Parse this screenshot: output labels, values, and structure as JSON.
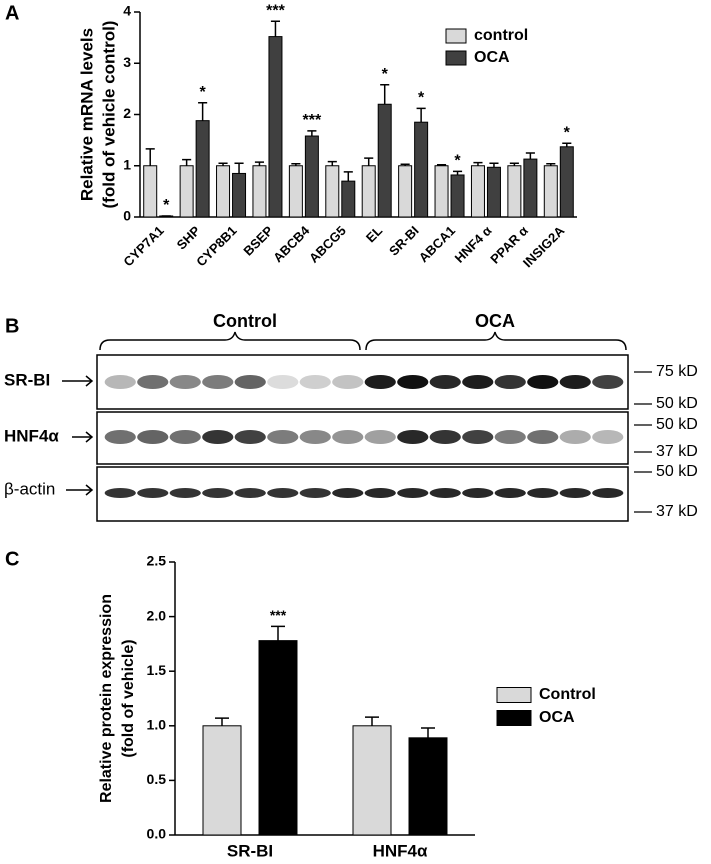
{
  "chart_data": [
    {
      "type": "bar",
      "panel": "A",
      "ylabel": [
        "Relative mRNA levels",
        "(fold of vehicle control)"
      ],
      "categories": [
        "CYP7A1",
        "SHP",
        "CYP8B1",
        "BSEP",
        "ABCB4",
        "ABCG5",
        "EL",
        "SR-BI",
        "ABCA1",
        "HNF4 α",
        "PPAR α",
        "INSIG2A"
      ],
      "series": [
        {
          "name": "control",
          "color": "#d9d9d9",
          "values": [
            1.0,
            1.0,
            1.0,
            1.0,
            1.0,
            1.0,
            1.0,
            1.0,
            1.0,
            1.0,
            1.0,
            1.0
          ],
          "errors": [
            0.33,
            0.12,
            0.05,
            0.07,
            0.04,
            0.08,
            0.15,
            0.03,
            0.02,
            0.06,
            0.05,
            0.04
          ]
        },
        {
          "name": "OCA",
          "color": "#404040",
          "values": [
            0.02,
            1.88,
            0.85,
            3.52,
            1.58,
            0.7,
            2.2,
            1.85,
            0.82,
            0.97,
            1.13,
            1.37
          ],
          "errors": [
            0.0,
            0.35,
            0.2,
            0.3,
            0.1,
            0.18,
            0.38,
            0.27,
            0.07,
            0.08,
            0.12,
            0.07
          ],
          "significance": [
            "*",
            "*",
            null,
            "***",
            "***",
            null,
            "*",
            "*",
            "*",
            null,
            null,
            "*"
          ]
        }
      ],
      "ylim": [
        0,
        4
      ],
      "yticks": [
        0,
        1,
        2,
        3,
        4
      ],
      "legend": "upper right",
      "grid": false
    },
    {
      "type": "bar",
      "panel": "C",
      "ylabel": [
        "Relative protein expression",
        "(fold of vehicle)"
      ],
      "categories": [
        "SR-BI",
        "HNF4α"
      ],
      "series": [
        {
          "name": "Control",
          "color": "#d9d9d9",
          "values": [
            1.0,
            1.0
          ],
          "errors": [
            0.07,
            0.08
          ]
        },
        {
          "name": "OCA",
          "color": "#000000",
          "values": [
            1.78,
            0.89
          ],
          "errors": [
            0.13,
            0.09
          ],
          "significance": [
            "***",
            null
          ]
        }
      ],
      "ylim": [
        0,
        2.5
      ],
      "yticks": [
        {
          "value": 0,
          "label": "0.0"
        },
        0.5,
        {
          "value": 1,
          "label": "1.0"
        },
        1.5,
        {
          "value": 2,
          "label": "2.0"
        },
        2.5
      ],
      "legend": "right",
      "grid": false
    }
  ],
  "blot": {
    "panel": "B",
    "groups": [
      "Control",
      "OCA"
    ],
    "rows": [
      {
        "label": "SR-BI",
        "markers": [
          "75 kD",
          "50 kD"
        ]
      },
      {
        "label": "HNF4α",
        "markers": [
          "50 kD",
          "37 kD"
        ]
      },
      {
        "label": "β-actin",
        "markers": [
          "50 kD",
          "37 kD"
        ]
      }
    ]
  }
}
